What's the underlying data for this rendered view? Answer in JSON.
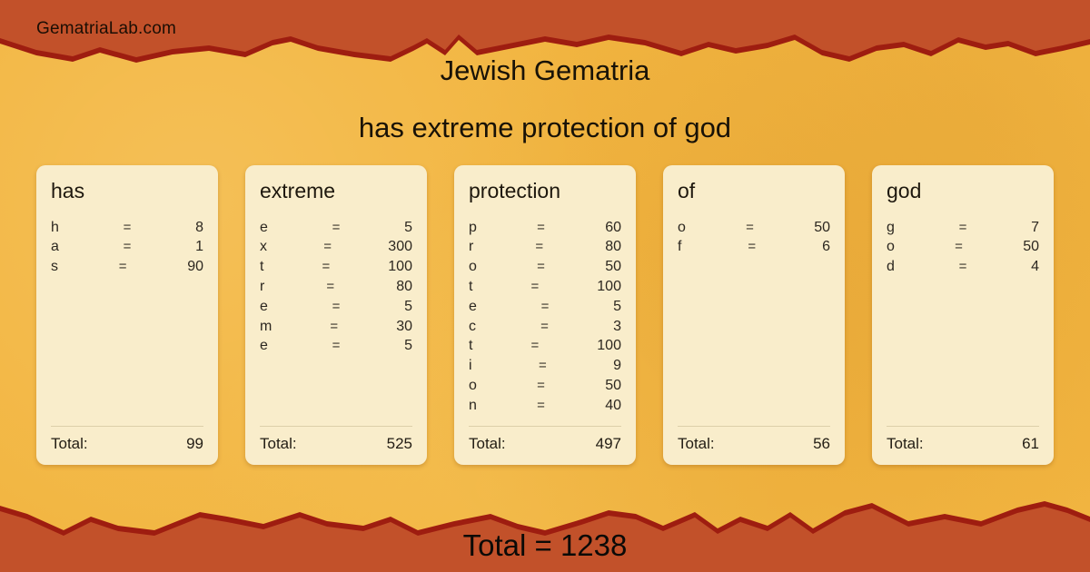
{
  "site": {
    "name": "GematriaLab.com"
  },
  "header": {
    "system": "Jewish Gematria",
    "phrase": "has extreme protection of god"
  },
  "symbols": {
    "equals": "="
  },
  "cards": [
    {
      "word": "has",
      "rows": [
        {
          "letter": "h",
          "value": "8"
        },
        {
          "letter": "a",
          "value": "1"
        },
        {
          "letter": "s",
          "value": "90"
        }
      ],
      "total_label": "Total:",
      "total": "99"
    },
    {
      "word": "extreme",
      "rows": [
        {
          "letter": "e",
          "value": "5"
        },
        {
          "letter": "x",
          "value": "300"
        },
        {
          "letter": "t",
          "value": "100"
        },
        {
          "letter": "r",
          "value": "80"
        },
        {
          "letter": "e",
          "value": "5"
        },
        {
          "letter": "m",
          "value": "30"
        },
        {
          "letter": "e",
          "value": "5"
        }
      ],
      "total_label": "Total:",
      "total": "525"
    },
    {
      "word": "protection",
      "rows": [
        {
          "letter": "p",
          "value": "60"
        },
        {
          "letter": "r",
          "value": "80"
        },
        {
          "letter": "o",
          "value": "50"
        },
        {
          "letter": "t",
          "value": "100"
        },
        {
          "letter": "e",
          "value": "5"
        },
        {
          "letter": "c",
          "value": "3"
        },
        {
          "letter": "t",
          "value": "100"
        },
        {
          "letter": "i",
          "value": "9"
        },
        {
          "letter": "o",
          "value": "50"
        },
        {
          "letter": "n",
          "value": "40"
        }
      ],
      "total_label": "Total:",
      "total": "497"
    },
    {
      "word": "of",
      "rows": [
        {
          "letter": "o",
          "value": "50"
        },
        {
          "letter": "f",
          "value": "6"
        }
      ],
      "total_label": "Total:",
      "total": "56"
    },
    {
      "word": "god",
      "rows": [
        {
          "letter": "g",
          "value": "7"
        },
        {
          "letter": "o",
          "value": "50"
        },
        {
          "letter": "d",
          "value": "4"
        }
      ],
      "total_label": "Total:",
      "total": "61"
    }
  ],
  "footer": {
    "grand_total": "Total = 1238"
  },
  "colors": {
    "band_orange": "#c2512a",
    "edge_red": "#9e1d10",
    "background": "#f2b540",
    "card": "#f9edcb",
    "text_dark": "#181207"
  }
}
